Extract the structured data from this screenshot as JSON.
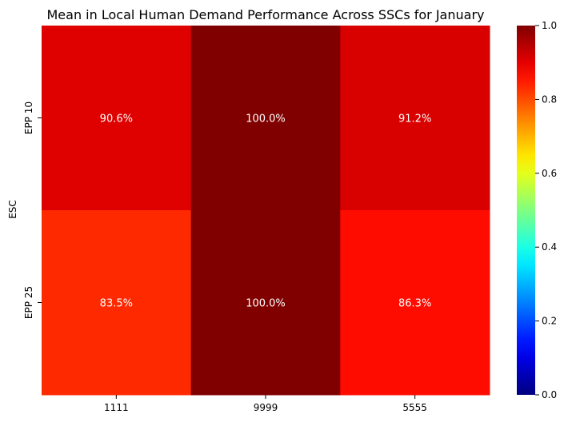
{
  "chart_data": {
    "type": "heatmap",
    "title": "Mean in Local Human Demand Performance Across SSCs for January",
    "xlabel": "",
    "ylabel": "ESC",
    "x_categories": [
      "1111",
      "9999",
      "5555"
    ],
    "y_categories": [
      "EPP 10",
      "EPP 25"
    ],
    "values": [
      [
        0.906,
        1.0,
        0.912
      ],
      [
        0.835,
        1.0,
        0.863
      ]
    ],
    "cell_labels": [
      [
        "90.6%",
        "100.0%",
        "91.2%"
      ],
      [
        "83.5%",
        "100.0%",
        "86.3%"
      ]
    ],
    "colormap": "jet",
    "colorbar": {
      "vmin": 0.0,
      "vmax": 1.0,
      "ticks": [
        0.0,
        0.2,
        0.4,
        0.6,
        0.8,
        1.0
      ],
      "tick_labels": [
        "0.0",
        "0.2",
        "0.4",
        "0.6",
        "0.8",
        "1.0"
      ]
    },
    "grid": false,
    "legend": "colorbar-right"
  }
}
